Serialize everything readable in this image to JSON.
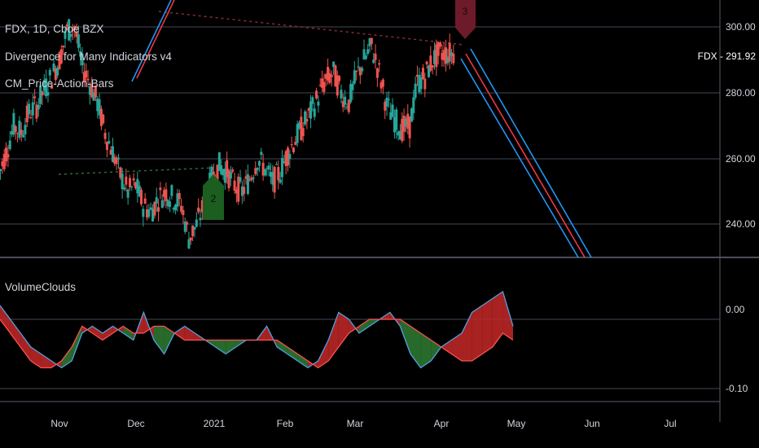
{
  "header": {
    "symbol_line": "FDX, 1D, Cboe BZX",
    "indicator_1": "Divergence for Many Indicators v4",
    "indicator_2": "CM_Price-Action-Bars"
  },
  "lower_pane": {
    "title": "VolumeClouds"
  },
  "last_price": {
    "symbol": "FDX",
    "value": "291.92",
    "label": "FDX - 291.92"
  },
  "divergence_markers": [
    {
      "label": "2",
      "type": "bullish",
      "color": "#1b5e20"
    },
    {
      "label": "3",
      "type": "bearish",
      "color": "#6d1b2b"
    }
  ],
  "colors": {
    "background": "#000000",
    "grid": "#363a45",
    "up_candle": "#26a69a",
    "down_candle": "#ef5350",
    "channel_blue": "#2196f3",
    "channel_red": "#f23645",
    "cloud_red": "#c62828",
    "cloud_green": "#2e7d32",
    "cloud_line_blue": "#4fa3e0",
    "cloud_line_red": "#ff5252"
  },
  "chart_data": [
    {
      "type": "candlestick",
      "title": "FDX, 1D, Cboe BZX",
      "x_ticks": [
        "Nov",
        "Dec",
        "2021",
        "Feb",
        "Mar",
        "Apr",
        "May",
        "Jun",
        "Jul"
      ],
      "y_ticks": [
        "300.00",
        "280.00",
        "260.00",
        "240.00"
      ],
      "ylim": [
        229,
        310
      ],
      "grid": true,
      "close_series": {
        "x_month_index": [
          0.0,
          0.1,
          0.2,
          0.3,
          0.4,
          0.5,
          0.6,
          0.7,
          0.8,
          0.9,
          1.0,
          1.1,
          1.2,
          1.3,
          1.4,
          1.5,
          1.6,
          1.7,
          1.8,
          1.9,
          2.0,
          2.1,
          2.2,
          2.3,
          2.4,
          2.5,
          2.6,
          2.7,
          2.8,
          2.9,
          3.0,
          3.1,
          3.2,
          3.3,
          3.4,
          3.5,
          3.6,
          3.7,
          3.8,
          3.9,
          4.0,
          4.1,
          4.2,
          4.3,
          4.4,
          4.5,
          4.6,
          4.7,
          4.8,
          4.9,
          5.0,
          5.1,
          5.2,
          5.3,
          5.4,
          5.5,
          5.6,
          5.7,
          5.8,
          5.9,
          6.0
        ],
        "close": [
          255,
          262,
          270,
          268,
          274,
          276,
          281,
          285,
          290,
          299,
          300,
          288,
          283,
          277,
          268,
          262,
          255,
          250,
          252,
          246,
          244,
          248,
          250,
          248,
          246,
          236,
          240,
          246,
          254,
          258,
          256,
          252,
          250,
          254,
          260,
          257,
          253,
          256,
          262,
          266,
          270,
          274,
          279,
          284,
          286,
          280,
          277,
          285,
          290,
          294,
          286,
          276,
          272,
          269,
          270,
          283,
          285,
          290,
          292,
          291.92,
          291.92
        ]
      },
      "channel_lines": [
        {
          "name": "upper",
          "start": [
            "Nov 28",
            286
          ],
          "end": [
            "Dec 14",
            306
          ]
        },
        {
          "name": "lower",
          "start": [
            "Apr 8",
            293
          ],
          "end": [
            "May 28",
            232
          ]
        }
      ],
      "last_price": 291.92
    },
    {
      "type": "area",
      "title": "VolumeClouds",
      "y_ticks": [
        "0.00",
        "-0.10"
      ],
      "ylim": [
        -0.12,
        0.05
      ],
      "series": [
        {
          "values": [
            0.02,
            0.0,
            -0.02,
            -0.04,
            -0.05,
            -0.06,
            -0.07,
            -0.06,
            -0.02,
            -0.01,
            -0.02,
            -0.01,
            -0.02,
            -0.03,
            0.01,
            -0.03,
            -0.05,
            -0.02,
            -0.01,
            -0.02,
            -0.03,
            -0.04,
            -0.05,
            -0.04,
            -0.03,
            -0.03,
            -0.01,
            -0.04,
            -0.05,
            -0.06,
            -0.07,
            -0.06,
            -0.03,
            0.01,
            0.0,
            -0.02,
            -0.01,
            0.0,
            0.01,
            -0.01,
            -0.05,
            -0.07,
            -0.06,
            -0.04,
            -0.03,
            -0.02,
            0.01,
            0.02,
            0.03,
            0.04,
            -0.01
          ]
        },
        {
          "values": [
            0.0,
            -0.02,
            -0.04,
            -0.06,
            -0.07,
            -0.07,
            -0.06,
            -0.04,
            -0.01,
            -0.02,
            -0.03,
            -0.02,
            -0.01,
            -0.02,
            -0.02,
            -0.01,
            -0.01,
            -0.02,
            -0.03,
            -0.03,
            -0.03,
            -0.03,
            -0.03,
            -0.03,
            -0.03,
            -0.03,
            -0.03,
            -0.03,
            -0.04,
            -0.05,
            -0.06,
            -0.07,
            -0.06,
            -0.04,
            -0.02,
            -0.01,
            0.0,
            0.0,
            0.0,
            0.0,
            -0.01,
            -0.02,
            -0.03,
            -0.04,
            -0.05,
            -0.06,
            -0.06,
            -0.05,
            -0.04,
            -0.02,
            -0.03
          ]
        }
      ]
    }
  ]
}
